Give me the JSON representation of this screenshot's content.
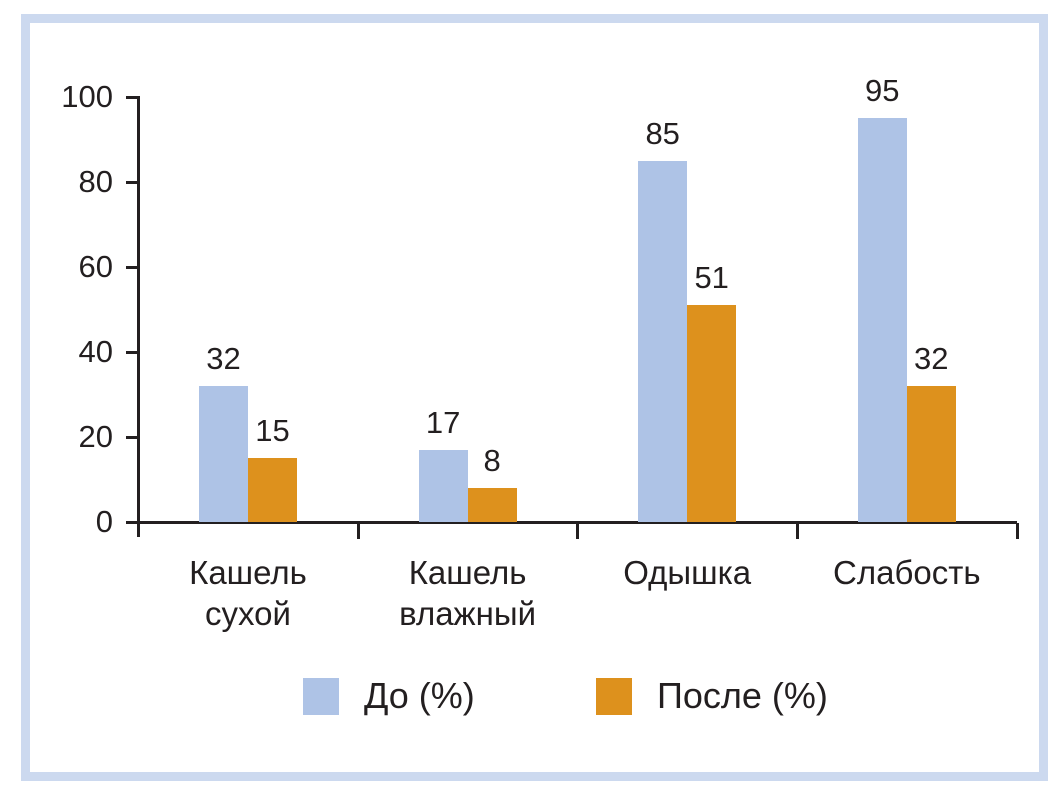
{
  "chart_data": {
    "type": "bar",
    "title": "",
    "categories": [
      "Кашель сухой",
      "Кашель влажный",
      "Одышка",
      "Слабость"
    ],
    "series": [
      {
        "name": "До (%)",
        "color": "#aec3e6",
        "values": [
          32,
          17,
          85,
          95
        ]
      },
      {
        "name": "После (%)",
        "color": "#dd911d",
        "values": [
          15,
          8,
          51,
          32
        ]
      }
    ],
    "ylim": [
      0,
      100
    ],
    "yticks": [
      0,
      20,
      40,
      60,
      80,
      100
    ],
    "grid": false,
    "bar_value_labels": true,
    "legend_position": "bottom"
  },
  "style": {
    "frame_border_color": "#ccd9ef",
    "axis_color": "#231f20",
    "text_color": "#231f20",
    "background": "#ffffff"
  }
}
